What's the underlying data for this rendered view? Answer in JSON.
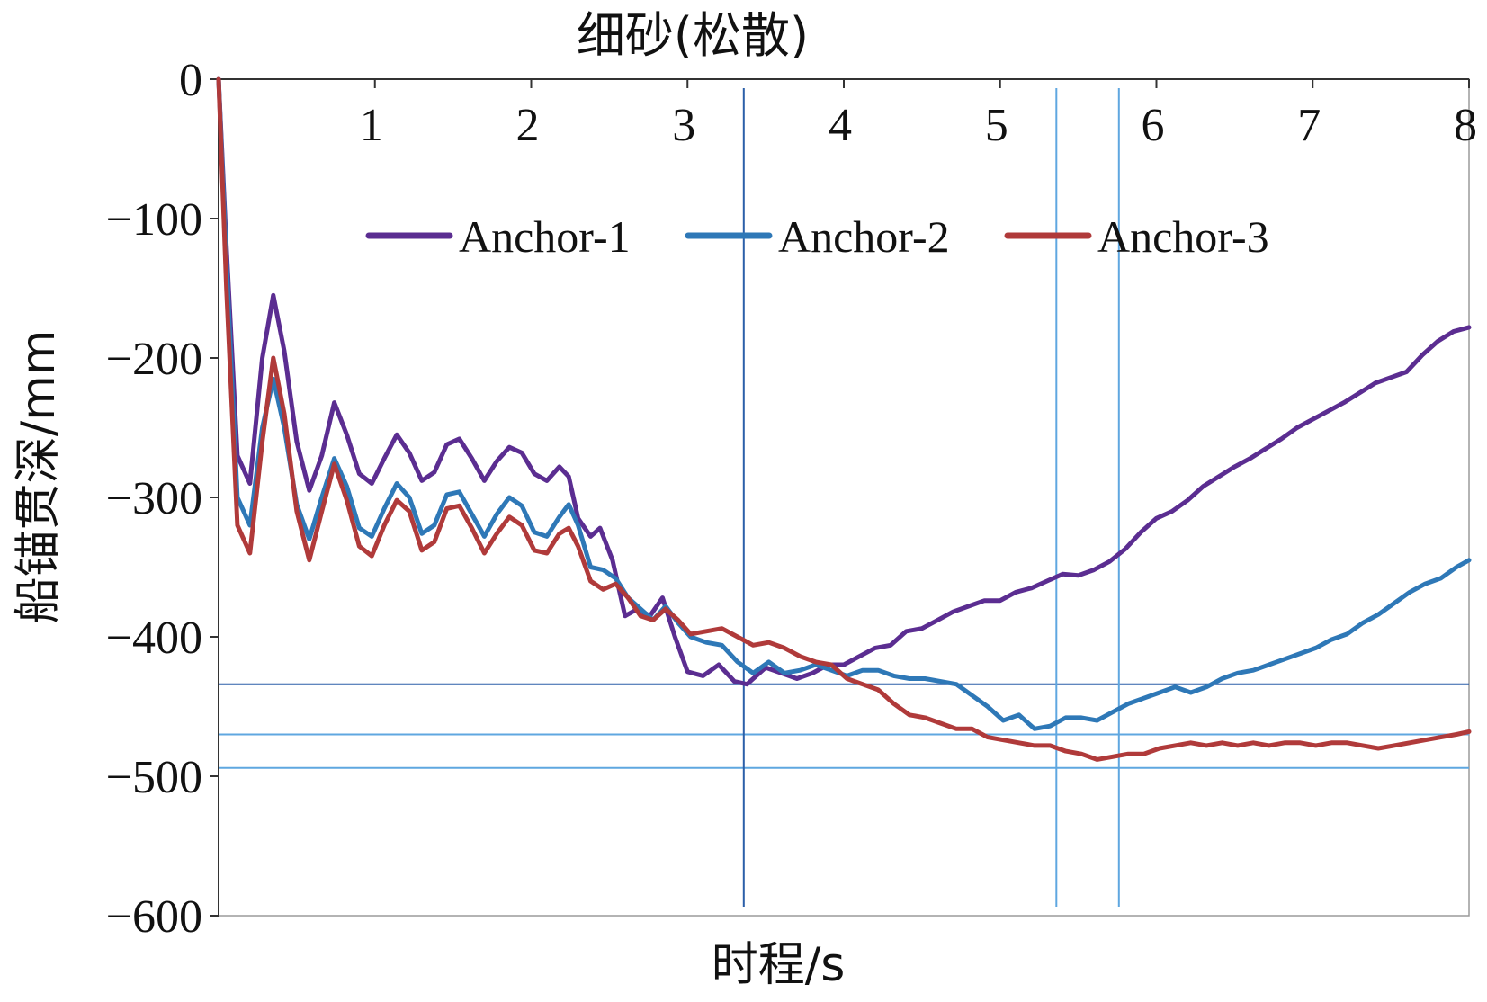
{
  "chart_data": {
    "type": "line",
    "title": "细砂(松散)",
    "xlabel": "时程/s",
    "ylabel": "船锚贯深/mm",
    "xlim": [
      0,
      8
    ],
    "ylim": [
      -600,
      0
    ],
    "x_axis_position": "top",
    "x_ticks": [
      "1",
      "2",
      "3",
      "4",
      "5",
      "6",
      "7",
      "8"
    ],
    "y_ticks": [
      "0",
      "−100",
      "−200",
      "−300",
      "−400",
      "−500",
      "−600"
    ],
    "legend_position": "top-center",
    "grid": false,
    "series": [
      {
        "name": "Anchor-1",
        "color": "#5b2d91",
        "points": [
          [
            0.0,
            0
          ],
          [
            0.05,
            -120
          ],
          [
            0.12,
            -270
          ],
          [
            0.2,
            -290
          ],
          [
            0.28,
            -200
          ],
          [
            0.35,
            -155
          ],
          [
            0.42,
            -195
          ],
          [
            0.5,
            -260
          ],
          [
            0.58,
            -295
          ],
          [
            0.66,
            -270
          ],
          [
            0.74,
            -232
          ],
          [
            0.82,
            -255
          ],
          [
            0.9,
            -283
          ],
          [
            0.98,
            -290
          ],
          [
            1.06,
            -272
          ],
          [
            1.14,
            -255
          ],
          [
            1.22,
            -268
          ],
          [
            1.3,
            -288
          ],
          [
            1.38,
            -282
          ],
          [
            1.46,
            -262
          ],
          [
            1.54,
            -258
          ],
          [
            1.62,
            -272
          ],
          [
            1.7,
            -288
          ],
          [
            1.78,
            -274
          ],
          [
            1.86,
            -264
          ],
          [
            1.94,
            -268
          ],
          [
            2.02,
            -283
          ],
          [
            2.1,
            -288
          ],
          [
            2.18,
            -278
          ],
          [
            2.24,
            -285
          ],
          [
            2.3,
            -315
          ],
          [
            2.38,
            -328
          ],
          [
            2.44,
            -322
          ],
          [
            2.52,
            -345
          ],
          [
            2.6,
            -385
          ],
          [
            2.68,
            -380
          ],
          [
            2.76,
            -385
          ],
          [
            2.84,
            -372
          ],
          [
            2.92,
            -400
          ],
          [
            3.0,
            -425
          ],
          [
            3.1,
            -428
          ],
          [
            3.2,
            -420
          ],
          [
            3.3,
            -432
          ],
          [
            3.38,
            -434
          ],
          [
            3.5,
            -422
          ],
          [
            3.6,
            -426
          ],
          [
            3.7,
            -430
          ],
          [
            3.8,
            -426
          ],
          [
            3.9,
            -420
          ],
          [
            4.0,
            -420
          ],
          [
            4.1,
            -414
          ],
          [
            4.2,
            -408
          ],
          [
            4.3,
            -406
          ],
          [
            4.4,
            -396
          ],
          [
            4.5,
            -394
          ],
          [
            4.6,
            -388
          ],
          [
            4.7,
            -382
          ],
          [
            4.8,
            -378
          ],
          [
            4.9,
            -374
          ],
          [
            5.0,
            -374
          ],
          [
            5.1,
            -368
          ],
          [
            5.2,
            -365
          ],
          [
            5.3,
            -360
          ],
          [
            5.4,
            -355
          ],
          [
            5.5,
            -356
          ],
          [
            5.6,
            -352
          ],
          [
            5.7,
            -346
          ],
          [
            5.8,
            -337
          ],
          [
            5.9,
            -325
          ],
          [
            6.0,
            -315
          ],
          [
            6.1,
            -310
          ],
          [
            6.2,
            -302
          ],
          [
            6.3,
            -292
          ],
          [
            6.4,
            -285
          ],
          [
            6.5,
            -278
          ],
          [
            6.6,
            -272
          ],
          [
            6.7,
            -265
          ],
          [
            6.8,
            -258
          ],
          [
            6.9,
            -250
          ],
          [
            7.0,
            -244
          ],
          [
            7.1,
            -238
          ],
          [
            7.2,
            -232
          ],
          [
            7.3,
            -225
          ],
          [
            7.4,
            -218
          ],
          [
            7.5,
            -214
          ],
          [
            7.6,
            -210
          ],
          [
            7.7,
            -198
          ],
          [
            7.8,
            -188
          ],
          [
            7.9,
            -181
          ],
          [
            8.0,
            -178
          ]
        ]
      },
      {
        "name": "Anchor-2",
        "color": "#2e78b7",
        "points": [
          [
            0.0,
            0
          ],
          [
            0.05,
            -130
          ],
          [
            0.12,
            -300
          ],
          [
            0.2,
            -320
          ],
          [
            0.28,
            -250
          ],
          [
            0.35,
            -215
          ],
          [
            0.42,
            -250
          ],
          [
            0.5,
            -305
          ],
          [
            0.58,
            -330
          ],
          [
            0.66,
            -300
          ],
          [
            0.74,
            -272
          ],
          [
            0.82,
            -292
          ],
          [
            0.9,
            -322
          ],
          [
            0.98,
            -328
          ],
          [
            1.06,
            -308
          ],
          [
            1.14,
            -290
          ],
          [
            1.22,
            -300
          ],
          [
            1.3,
            -326
          ],
          [
            1.38,
            -320
          ],
          [
            1.46,
            -298
          ],
          [
            1.54,
            -296
          ],
          [
            1.62,
            -312
          ],
          [
            1.7,
            -328
          ],
          [
            1.78,
            -312
          ],
          [
            1.86,
            -300
          ],
          [
            1.94,
            -306
          ],
          [
            2.02,
            -325
          ],
          [
            2.1,
            -328
          ],
          [
            2.18,
            -314
          ],
          [
            2.24,
            -305
          ],
          [
            2.3,
            -320
          ],
          [
            2.38,
            -350
          ],
          [
            2.46,
            -352
          ],
          [
            2.54,
            -358
          ],
          [
            2.62,
            -372
          ],
          [
            2.7,
            -380
          ],
          [
            2.78,
            -388
          ],
          [
            2.86,
            -378
          ],
          [
            2.94,
            -390
          ],
          [
            3.02,
            -400
          ],
          [
            3.12,
            -404
          ],
          [
            3.22,
            -406
          ],
          [
            3.32,
            -418
          ],
          [
            3.42,
            -426
          ],
          [
            3.52,
            -418
          ],
          [
            3.62,
            -426
          ],
          [
            3.72,
            -424
          ],
          [
            3.82,
            -420
          ],
          [
            3.92,
            -424
          ],
          [
            4.02,
            -428
          ],
          [
            4.12,
            -424
          ],
          [
            4.22,
            -424
          ],
          [
            4.32,
            -428
          ],
          [
            4.42,
            -430
          ],
          [
            4.52,
            -430
          ],
          [
            4.62,
            -432
          ],
          [
            4.72,
            -434
          ],
          [
            4.82,
            -442
          ],
          [
            4.92,
            -450
          ],
          [
            5.02,
            -460
          ],
          [
            5.12,
            -456
          ],
          [
            5.22,
            -466
          ],
          [
            5.32,
            -464
          ],
          [
            5.42,
            -458
          ],
          [
            5.52,
            -458
          ],
          [
            5.62,
            -460
          ],
          [
            5.72,
            -454
          ],
          [
            5.82,
            -448
          ],
          [
            5.92,
            -444
          ],
          [
            6.02,
            -440
          ],
          [
            6.12,
            -436
          ],
          [
            6.22,
            -440
          ],
          [
            6.32,
            -436
          ],
          [
            6.42,
            -430
          ],
          [
            6.52,
            -426
          ],
          [
            6.62,
            -424
          ],
          [
            6.72,
            -420
          ],
          [
            6.82,
            -416
          ],
          [
            6.92,
            -412
          ],
          [
            7.02,
            -408
          ],
          [
            7.12,
            -402
          ],
          [
            7.22,
            -398
          ],
          [
            7.32,
            -390
          ],
          [
            7.42,
            -384
          ],
          [
            7.52,
            -376
          ],
          [
            7.62,
            -368
          ],
          [
            7.72,
            -362
          ],
          [
            7.82,
            -358
          ],
          [
            7.92,
            -350
          ],
          [
            8.0,
            -345
          ]
        ]
      },
      {
        "name": "Anchor-3",
        "color": "#b03a3a",
        "points": [
          [
            0.0,
            0
          ],
          [
            0.05,
            -150
          ],
          [
            0.12,
            -320
          ],
          [
            0.2,
            -340
          ],
          [
            0.28,
            -260
          ],
          [
            0.35,
            -200
          ],
          [
            0.42,
            -240
          ],
          [
            0.5,
            -310
          ],
          [
            0.58,
            -345
          ],
          [
            0.66,
            -310
          ],
          [
            0.74,
            -276
          ],
          [
            0.82,
            -302
          ],
          [
            0.9,
            -335
          ],
          [
            0.98,
            -342
          ],
          [
            1.06,
            -320
          ],
          [
            1.14,
            -302
          ],
          [
            1.22,
            -310
          ],
          [
            1.3,
            -338
          ],
          [
            1.38,
            -332
          ],
          [
            1.46,
            -308
          ],
          [
            1.54,
            -306
          ],
          [
            1.62,
            -322
          ],
          [
            1.7,
            -340
          ],
          [
            1.78,
            -326
          ],
          [
            1.86,
            -314
          ],
          [
            1.94,
            -320
          ],
          [
            2.02,
            -338
          ],
          [
            2.1,
            -340
          ],
          [
            2.18,
            -326
          ],
          [
            2.24,
            -322
          ],
          [
            2.3,
            -335
          ],
          [
            2.38,
            -360
          ],
          [
            2.46,
            -366
          ],
          [
            2.54,
            -362
          ],
          [
            2.62,
            -372
          ],
          [
            2.7,
            -385
          ],
          [
            2.78,
            -388
          ],
          [
            2.86,
            -380
          ],
          [
            2.94,
            -388
          ],
          [
            3.02,
            -398
          ],
          [
            3.12,
            -396
          ],
          [
            3.22,
            -394
          ],
          [
            3.32,
            -400
          ],
          [
            3.42,
            -406
          ],
          [
            3.52,
            -404
          ],
          [
            3.62,
            -408
          ],
          [
            3.72,
            -414
          ],
          [
            3.82,
            -418
          ],
          [
            3.92,
            -420
          ],
          [
            4.02,
            -430
          ],
          [
            4.12,
            -434
          ],
          [
            4.22,
            -438
          ],
          [
            4.32,
            -448
          ],
          [
            4.42,
            -456
          ],
          [
            4.52,
            -458
          ],
          [
            4.62,
            -462
          ],
          [
            4.72,
            -466
          ],
          [
            4.82,
            -466
          ],
          [
            4.92,
            -472
          ],
          [
            5.02,
            -474
          ],
          [
            5.12,
            -476
          ],
          [
            5.22,
            -478
          ],
          [
            5.32,
            -478
          ],
          [
            5.42,
            -482
          ],
          [
            5.52,
            -484
          ],
          [
            5.62,
            -488
          ],
          [
            5.72,
            -486
          ],
          [
            5.82,
            -484
          ],
          [
            5.92,
            -484
          ],
          [
            6.02,
            -480
          ],
          [
            6.12,
            -478
          ],
          [
            6.22,
            -476
          ],
          [
            6.32,
            -478
          ],
          [
            6.42,
            -476
          ],
          [
            6.52,
            -478
          ],
          [
            6.62,
            -476
          ],
          [
            6.72,
            -478
          ],
          [
            6.82,
            -476
          ],
          [
            6.92,
            -476
          ],
          [
            7.02,
            -478
          ],
          [
            7.12,
            -476
          ],
          [
            7.22,
            -476
          ],
          [
            7.32,
            -478
          ],
          [
            7.42,
            -480
          ],
          [
            7.52,
            -478
          ],
          [
            7.62,
            -476
          ],
          [
            7.72,
            -474
          ],
          [
            7.82,
            -472
          ],
          [
            7.92,
            -470
          ],
          [
            8.0,
            -468
          ]
        ]
      }
    ],
    "reference_lines": {
      "horizontal": [
        {
          "y": -434,
          "color": "#2b5fa8"
        },
        {
          "y": -470,
          "color": "#5fa7e0"
        },
        {
          "y": -494,
          "color": "#5fa7e0"
        }
      ],
      "vertical": [
        {
          "x": 3.36,
          "color": "#2b5fa8"
        },
        {
          "x": 5.36,
          "color": "#5fa7e0"
        },
        {
          "x": 5.76,
          "color": "#5fa7e0"
        }
      ]
    }
  }
}
